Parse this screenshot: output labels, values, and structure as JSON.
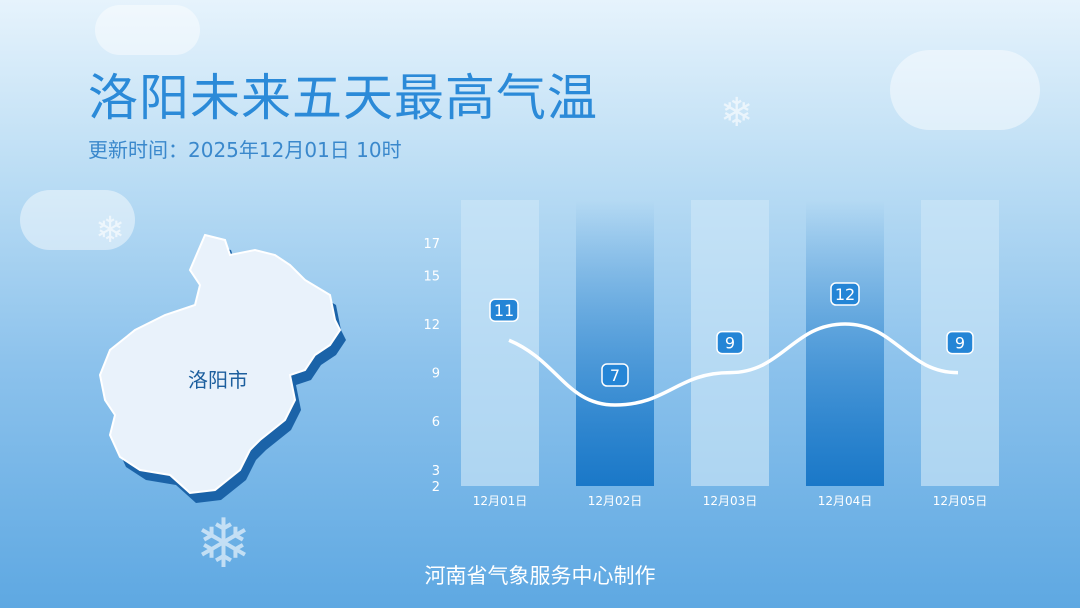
{
  "title": "洛阳未来五天最高气温",
  "subtitle": "更新时间：2025年12月01日 10时",
  "map": {
    "city_label": "洛阳市"
  },
  "footer": "河南省气象服务中心制作",
  "colors": {
    "accent": "#2485d6",
    "bar_light": "#b7daf3",
    "bar_dark": "#1a78c8"
  },
  "chart_data": {
    "type": "bar+line",
    "categories": [
      "12月01日",
      "12月02日",
      "12月03日",
      "12月04日",
      "12月05日"
    ],
    "values": [
      11,
      7,
      9,
      12,
      9
    ],
    "yticks": [
      2,
      3,
      6,
      9,
      12,
      15,
      17
    ],
    "ylim": [
      2,
      17
    ],
    "grid": false
  }
}
